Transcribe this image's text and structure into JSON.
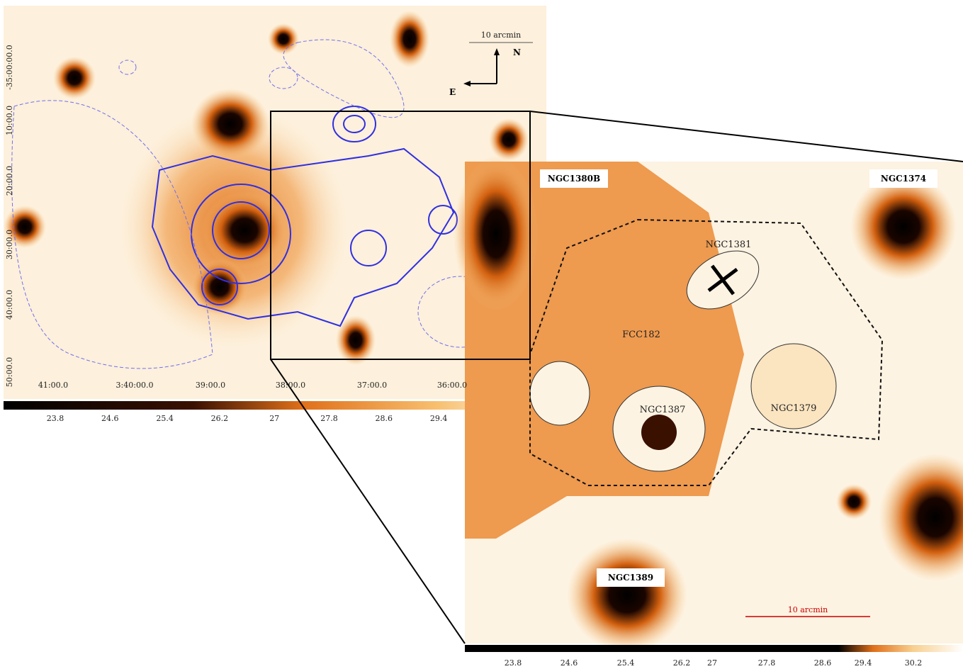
{
  "left_panel": {
    "dec_labels": [
      "-35:00:00.0",
      "10:00.0",
      "20:00.0",
      "30:00.0",
      "40:00.0",
      "50:00.0"
    ],
    "ra_labels": [
      "41:00.0",
      "3:40:00.0",
      "39:00.0",
      "38:00.0",
      "37:00.0",
      "36:00.0"
    ],
    "scale_label": "10 arcmin",
    "north": "N",
    "east": "E",
    "colorbar_ticks": [
      23.8,
      24.6,
      25.4,
      26.2,
      27,
      27.8,
      28.6,
      29.4
    ]
  },
  "right_panel": {
    "galaxies": [
      {
        "label": "NGC1380B"
      },
      {
        "label": "NGC1374"
      },
      {
        "label": "NGC1381"
      },
      {
        "label": "FCC182"
      },
      {
        "label": "NGC1387"
      },
      {
        "label": "NGC1379"
      },
      {
        "label": "NGC1389"
      }
    ],
    "scale_label": "10 arcmin",
    "colorbar_ticks": [
      23.8,
      24.6,
      25.4,
      26.2,
      27,
      27.8,
      28.6,
      29.4,
      30.2
    ]
  }
}
